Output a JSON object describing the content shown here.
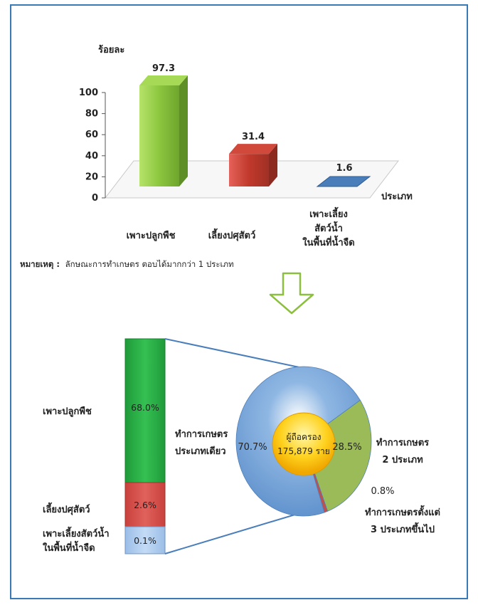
{
  "chart_data": [
    {
      "type": "bar",
      "ylabel": "ร้อยละ",
      "xlabel": "ประเภท",
      "ylim": [
        0,
        100
      ],
      "yticks": [
        "0",
        "20",
        "40",
        "60",
        "80",
        "100"
      ],
      "categories": [
        {
          "lines": [
            "เพาะปลูกพืช"
          ],
          "value": 97.3,
          "label": "97.3",
          "color": "#8cc63f"
        },
        {
          "lines": [
            "เลี้ยงปศุสัตว์"
          ],
          "value": 31.4,
          "label": "31.4",
          "color": "#c0392b"
        },
        {
          "lines": [
            "เพาะเลี้ยง",
            "สัตว์น้ำ",
            "ในพื้นที่น้ำจืด"
          ],
          "value": 1.6,
          "label": "1.6",
          "color": "#4a7ebb"
        }
      ],
      "note_title": "หมายเหตุ :",
      "note_text": "ลักษณะการทำเกษตร ตอบได้มากกว่า 1 ประเภท"
    },
    {
      "type": "pie",
      "center_lines": [
        "ผู้ถือครอง",
        "175,879 ราย"
      ],
      "slices": [
        {
          "value": 70.7,
          "label": "70.7%",
          "lines": [
            "ทำการเกษตร",
            "ประเภทเดียว"
          ],
          "color": "#6c9fd6"
        },
        {
          "value": 28.5,
          "label": "28.5%",
          "lines": [
            "ทำการเกษตร",
            "2 ประเภท"
          ],
          "color": "#9bbb59"
        },
        {
          "value": 0.8,
          "label": "0.8%",
          "lines": [
            "ทำการเกษตรตั้งแต่",
            "3 ประเภทขึ้นไป"
          ],
          "color": "#c0504d"
        }
      ]
    },
    {
      "type": "stacked-bar",
      "segments": [
        {
          "value": 68.0,
          "label": "68.0%",
          "lines": [
            "เพาะปลูกพืช"
          ],
          "color": "#2db24a"
        },
        {
          "value": 2.6,
          "label": "2.6%",
          "lines": [
            "เลี้ยงปศุสัตว์"
          ],
          "color": "#d9534f"
        },
        {
          "value": 0.1,
          "label": "0.1%",
          "lines": [
            "เพาะเลี้ยงสัตว์น้ำ",
            "ในพื้นที่น้ำจืด"
          ],
          "color": "#a9c8ee"
        }
      ]
    }
  ]
}
